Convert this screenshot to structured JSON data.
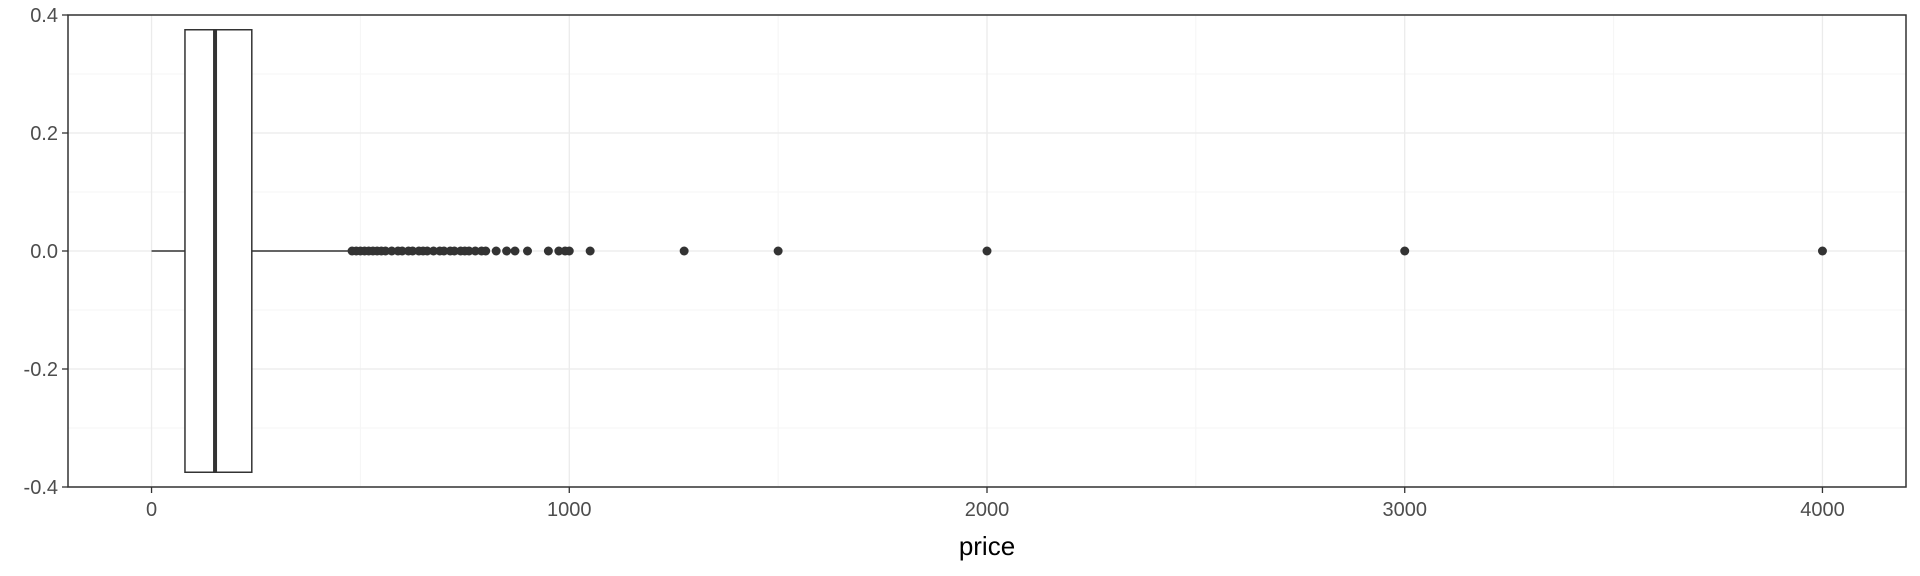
{
  "chart_data": {
    "type": "boxplot",
    "title": "",
    "xlabel": "price",
    "ylabel": "",
    "xlim": [
      -200,
      4200
    ],
    "ylim": [
      -0.4,
      0.4
    ],
    "x_ticks": [
      0,
      1000,
      2000,
      3000,
      4000
    ],
    "x_tick_labels": [
      "0",
      "1000",
      "2000",
      "3000",
      "4000"
    ],
    "y_ticks": [
      0.4,
      0.2,
      0.0,
      -0.2,
      -0.4
    ],
    "y_tick_labels": [
      "0.4",
      "0.2",
      "0.0",
      "-0.2",
      "-0.4"
    ],
    "grid": true,
    "box": {
      "position": 0.0,
      "half_width": 0.375,
      "whisker_low": 0,
      "q1": 80,
      "median": 152,
      "q3": 240,
      "whisker_high": 475
    },
    "outliers": [
      480,
      490,
      500,
      510,
      520,
      530,
      540,
      550,
      560,
      575,
      590,
      600,
      615,
      625,
      640,
      650,
      660,
      675,
      690,
      700,
      715,
      725,
      740,
      750,
      760,
      775,
      790,
      800,
      825,
      850,
      870,
      900,
      950,
      975,
      990,
      1000,
      1050,
      1275,
      1500,
      2000,
      3000,
      4000
    ],
    "colors": {
      "panel_border": "#333333",
      "grid_major": "#ebebeb",
      "grid_minor": "#f5f5f5",
      "box_stroke": "#333333",
      "box_fill": "#ffffff",
      "outlier": "#333333",
      "tick_label": "#4d4d4d",
      "axis_title": "#000000"
    }
  }
}
